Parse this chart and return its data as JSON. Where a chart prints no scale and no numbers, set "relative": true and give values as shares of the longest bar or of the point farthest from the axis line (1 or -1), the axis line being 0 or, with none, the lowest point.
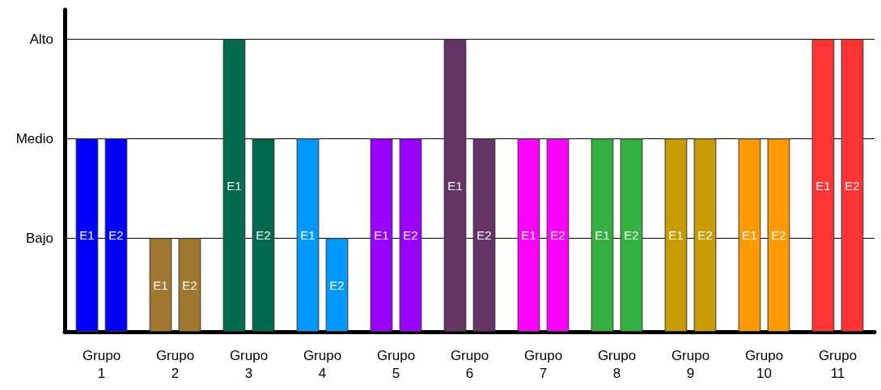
{
  "chart_data": {
    "type": "bar",
    "categories": [
      "Grupo 1",
      "Grupo 2",
      "Grupo 3",
      "Grupo 4",
      "Grupo 5",
      "Grupo 6",
      "Grupo 7",
      "Grupo 8",
      "Grupo 9",
      "Grupo 10",
      "Grupo 11"
    ],
    "relative": true,
    "series": [
      {
        "name": "E1",
        "values": [
          0.66,
          0.32,
          1,
          0.66,
          0.66,
          1,
          0.66,
          0.66,
          0.66,
          0.66,
          1
        ],
        "colors": [
          "#0000ff",
          "#a07830",
          "#006a4e",
          "#0099ff",
          "#9900ff",
          "#663366",
          "#ff00ff",
          "#33b040",
          "#c89c00",
          "#ff9900",
          "#ff3333"
        ]
      },
      {
        "name": "E2",
        "values": [
          0.66,
          0.32,
          0.66,
          0.32,
          0.66,
          0.66,
          0.66,
          0.66,
          0.66,
          0.66,
          1
        ],
        "colors": [
          "#0000ff",
          "#a07830",
          "#006a4e",
          "#0099ff",
          "#9900ff",
          "#663366",
          "#ff00ff",
          "#33b040",
          "#c89c00",
          "#ff9900",
          "#ff3333"
        ]
      }
    ],
    "ref_lines": [
      {
        "axis": "y",
        "value": 0.32,
        "label": "Bajo",
        "color": "#000000"
      },
      {
        "axis": "y",
        "value": 0.66,
        "label": "Medio",
        "color": "#000000"
      },
      {
        "axis": "y",
        "value": 1,
        "label": "Alto",
        "color": "#000000"
      }
    ],
    "legend": false
  }
}
